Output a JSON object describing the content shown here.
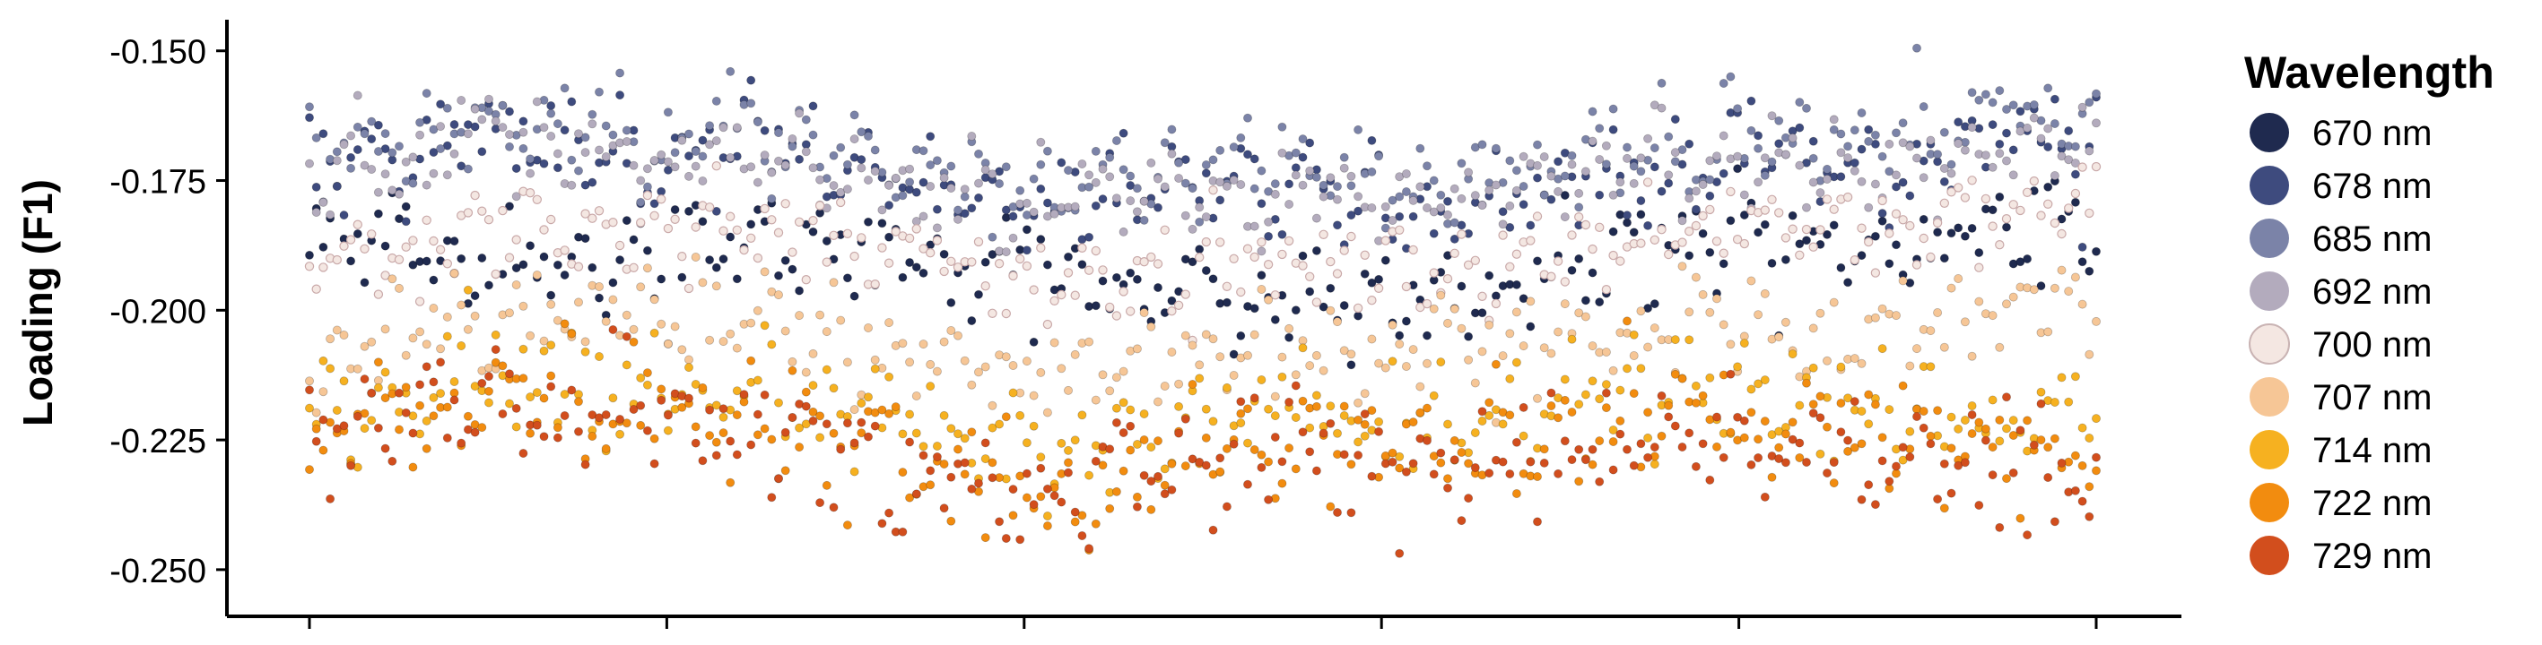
{
  "chart_data": {
    "type": "scatter",
    "ylabel": "Loading (F1)",
    "ylim": [
      -0.259,
      -0.144
    ],
    "xlim": [
      0,
      500
    ],
    "y_ticks": [
      -0.15,
      -0.175,
      -0.2,
      -0.225,
      -0.25
    ],
    "y_tick_labels": [
      "-0.150",
      "-0.175",
      "-0.200",
      "-0.225",
      "-0.250"
    ],
    "x_ticks": [
      0,
      100,
      200,
      300,
      400,
      500
    ],
    "x_tick_labels": [
      "",
      "",
      "",
      "",
      "",
      ""
    ],
    "grid": false,
    "legend": {
      "title": "Wavelength",
      "position": "right",
      "entries": [
        "670 nm",
        "678 nm",
        "685 nm",
        "692 nm",
        "700 nm",
        "707 nm",
        "714 nm",
        "722 nm",
        "729 nm"
      ]
    },
    "series": [
      {
        "name": "670 nm",
        "color": "#1f2a4f",
        "x": [
          0,
          25,
          50,
          75,
          100,
          125,
          150,
          175,
          200,
          225,
          250,
          275,
          300,
          325,
          350,
          375,
          400,
          425,
          450,
          475,
          500
        ],
        "y": [
          -0.188,
          -0.187,
          -0.19,
          -0.192,
          -0.188,
          -0.186,
          -0.189,
          -0.19,
          -0.193,
          -0.194,
          -0.196,
          -0.197,
          -0.199,
          -0.198,
          -0.193,
          -0.189,
          -0.189,
          -0.187,
          -0.19,
          -0.186,
          -0.184
        ]
      },
      {
        "name": "678 nm",
        "color": "#3e4b7e",
        "x": [
          0,
          25,
          50,
          75,
          100,
          125,
          150,
          175,
          200,
          225,
          250,
          275,
          300,
          325,
          350,
          375,
          400,
          425,
          450,
          475,
          500
        ],
        "y": [
          -0.172,
          -0.169,
          -0.165,
          -0.168,
          -0.172,
          -0.166,
          -0.172,
          -0.176,
          -0.181,
          -0.179,
          -0.176,
          -0.177,
          -0.18,
          -0.18,
          -0.175,
          -0.172,
          -0.17,
          -0.172,
          -0.172,
          -0.166,
          -0.165
        ]
      },
      {
        "name": "685 nm",
        "color": "#7b83a8",
        "x": [
          0,
          25,
          50,
          75,
          100,
          125,
          150,
          175,
          200,
          225,
          250,
          275,
          300,
          325,
          350,
          375,
          400,
          425,
          450,
          475,
          500
        ],
        "y": [
          -0.17,
          -0.166,
          -0.163,
          -0.165,
          -0.168,
          -0.163,
          -0.17,
          -0.173,
          -0.176,
          -0.174,
          -0.173,
          -0.173,
          -0.176,
          -0.176,
          -0.171,
          -0.168,
          -0.167,
          -0.168,
          -0.168,
          -0.163,
          -0.163
        ]
      },
      {
        "name": "692 nm",
        "color": "#b3abbd",
        "x": [
          0,
          25,
          50,
          75,
          100,
          125,
          150,
          175,
          200,
          225,
          250,
          275,
          300,
          325,
          350,
          375,
          400,
          425,
          450,
          475,
          500
        ],
        "y": [
          -0.174,
          -0.171,
          -0.167,
          -0.169,
          -0.171,
          -0.167,
          -0.174,
          -0.177,
          -0.18,
          -0.178,
          -0.177,
          -0.177,
          -0.179,
          -0.179,
          -0.175,
          -0.172,
          -0.171,
          -0.172,
          -0.172,
          -0.168,
          -0.167
        ]
      },
      {
        "name": "700 nm",
        "color": "#f4e7e2",
        "x": [
          0,
          25,
          50,
          75,
          100,
          125,
          150,
          175,
          200,
          225,
          250,
          275,
          300,
          325,
          350,
          375,
          400,
          425,
          450,
          475,
          500
        ],
        "y": [
          -0.192,
          -0.187,
          -0.184,
          -0.183,
          -0.184,
          -0.184,
          -0.188,
          -0.191,
          -0.194,
          -0.193,
          -0.19,
          -0.191,
          -0.193,
          -0.192,
          -0.188,
          -0.185,
          -0.184,
          -0.184,
          -0.184,
          -0.181,
          -0.18
        ]
      },
      {
        "name": "707 nm",
        "color": "#f6c696",
        "x": [
          0,
          25,
          50,
          75,
          100,
          125,
          150,
          175,
          200,
          225,
          250,
          275,
          300,
          325,
          350,
          375,
          400,
          425,
          450,
          475,
          500
        ],
        "y": [
          -0.209,
          -0.205,
          -0.201,
          -0.2,
          -0.201,
          -0.201,
          -0.206,
          -0.209,
          -0.212,
          -0.211,
          -0.208,
          -0.207,
          -0.209,
          -0.209,
          -0.206,
          -0.203,
          -0.202,
          -0.203,
          -0.204,
          -0.201,
          -0.198
        ]
      },
      {
        "name": "714 nm",
        "color": "#f6b120",
        "x": [
          0,
          25,
          50,
          75,
          100,
          125,
          150,
          175,
          200,
          225,
          250,
          275,
          300,
          325,
          350,
          375,
          400,
          425,
          450,
          475,
          500
        ],
        "y": [
          -0.222,
          -0.217,
          -0.213,
          -0.214,
          -0.215,
          -0.214,
          -0.22,
          -0.224,
          -0.227,
          -0.226,
          -0.222,
          -0.22,
          -0.222,
          -0.222,
          -0.219,
          -0.217,
          -0.216,
          -0.218,
          -0.221,
          -0.222,
          -0.22
        ]
      },
      {
        "name": "722 nm",
        "color": "#f28c0f",
        "x": [
          0,
          25,
          50,
          75,
          100,
          125,
          150,
          175,
          200,
          225,
          250,
          275,
          300,
          325,
          350,
          375,
          400,
          425,
          450,
          475,
          500
        ],
        "y": [
          -0.225,
          -0.22,
          -0.217,
          -0.219,
          -0.22,
          -0.22,
          -0.226,
          -0.23,
          -0.233,
          -0.232,
          -0.228,
          -0.226,
          -0.227,
          -0.227,
          -0.225,
          -0.222,
          -0.221,
          -0.223,
          -0.226,
          -0.229,
          -0.23
        ]
      },
      {
        "name": "729 nm",
        "color": "#d24e1d",
        "x": [
          0,
          25,
          50,
          75,
          100,
          125,
          150,
          175,
          200,
          225,
          250,
          275,
          300,
          325,
          350,
          375,
          400,
          425,
          450,
          475,
          500
        ],
        "y": [
          -0.226,
          -0.222,
          -0.218,
          -0.22,
          -0.222,
          -0.222,
          -0.228,
          -0.232,
          -0.235,
          -0.234,
          -0.23,
          -0.228,
          -0.229,
          -0.229,
          -0.226,
          -0.224,
          -0.223,
          -0.225,
          -0.228,
          -0.231,
          -0.233
        ]
      }
    ]
  }
}
